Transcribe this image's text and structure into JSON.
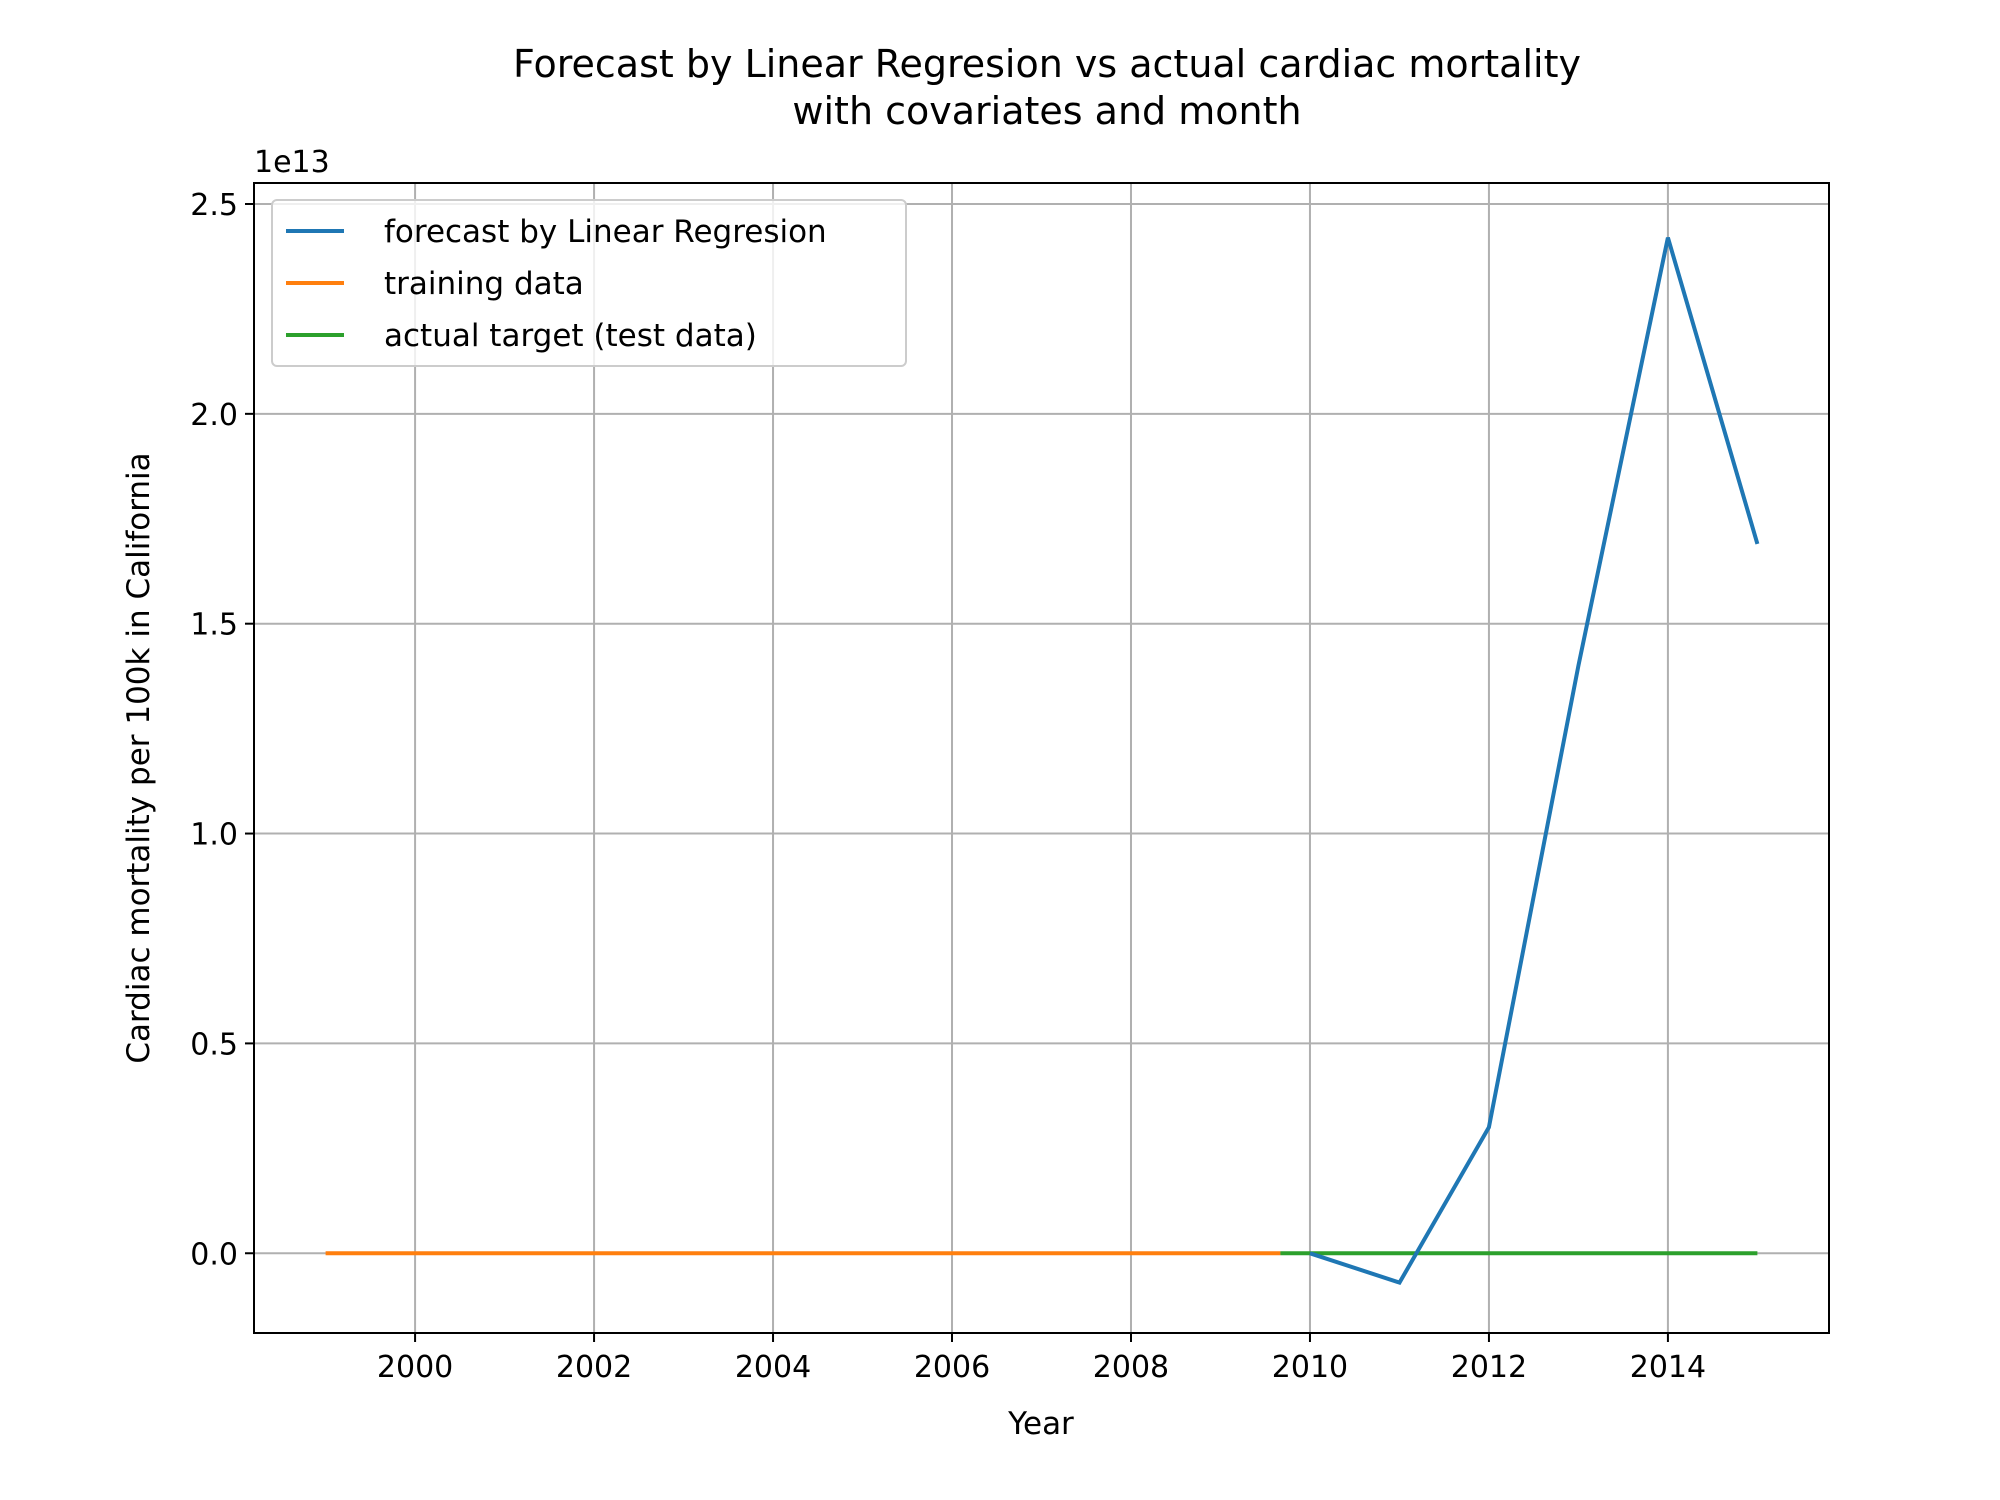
{
  "chart_data": {
    "type": "line",
    "title": "Forecast by Linear Regresion vs actual cardiac mortality\nwith covariates and month",
    "title_lines": [
      "Forecast by Linear Regresion vs actual cardiac mortality",
      "with covariates and month"
    ],
    "xlabel": "Year",
    "ylabel": "Cardiac mortality per 100k in California",
    "y_offset_label": "1e13",
    "y_scale_factor": 10000000000000.0,
    "xlim": [
      1998.2,
      2015.8
    ],
    "ylim": [
      -0.19,
      2.55
    ],
    "x_ticks": [
      2000,
      2002,
      2004,
      2006,
      2008,
      2010,
      2012,
      2014
    ],
    "x_tick_labels": [
      "2000",
      "2002",
      "2004",
      "2006",
      "2008",
      "2010",
      "2012",
      "2014"
    ],
    "y_ticks": [
      0.0,
      0.5,
      1.0,
      1.5,
      2.0,
      2.5
    ],
    "y_tick_labels": [
      "0.0",
      "0.5",
      "1.0",
      "1.5",
      "2.0",
      "2.5"
    ],
    "grid": true,
    "legend_position": "upper-left",
    "series": [
      {
        "name": "forecast by Linear Regresion",
        "color": "#1f77b4",
        "x": [
          2010,
          2011,
          2012,
          2013,
          2014,
          2015
        ],
        "y": [
          0.0,
          -0.07,
          0.3,
          1.4,
          2.42,
          1.69
        ]
      },
      {
        "name": "training data",
        "color": "#ff7f0e",
        "x": [
          1999,
          2009.67
        ],
        "y": [
          0.0,
          0.0
        ]
      },
      {
        "name": "actual target (test data)",
        "color": "#2ca02c",
        "x": [
          2009.67,
          2015
        ],
        "y": [
          0.0,
          0.0
        ]
      }
    ]
  }
}
